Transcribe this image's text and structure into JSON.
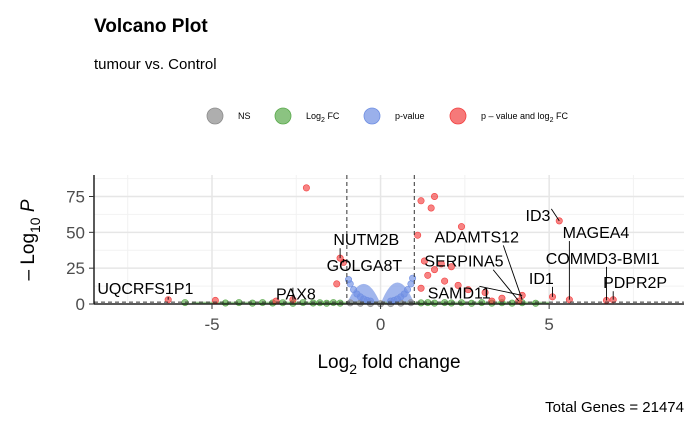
{
  "chart_data": {
    "type": "scatter",
    "title": "Volcano Plot",
    "subtitle": "tumour vs. Control",
    "caption": "Total Genes = 21474",
    "legend": {
      "placement": "top",
      "items": [
        {
          "label": "NS",
          "color": "#8c8c8c"
        },
        {
          "label": "Log",
          "sub": "2",
          "suffix": " FC",
          "color": "#5aaa4c"
        },
        {
          "label": "p-value",
          "color": "#6f8fe3"
        },
        {
          "label": "p – value and log",
          "sub": "2",
          "suffix": " FC",
          "color": "#f24040"
        }
      ]
    },
    "xlabel": {
      "pre": "Log",
      "sub": "2",
      "post": " fold change"
    },
    "ylabel": {
      "pre": "– Log",
      "sub": "10",
      "post": " P"
    },
    "xlim": [
      -8.5,
      9.0
    ],
    "ylim": [
      0,
      90
    ],
    "xticks": [
      -5,
      0,
      5
    ],
    "yticks": [
      0,
      25,
      50,
      75
    ],
    "grid": true,
    "fc_cutoff": [
      -1,
      1
    ],
    "p_cutoff": 1.3,
    "significant_points": [
      {
        "x": -2.2,
        "y": 81
      },
      {
        "x": 1.6,
        "y": 75
      },
      {
        "x": 1.2,
        "y": 72
      },
      {
        "x": 1.5,
        "y": 67
      },
      {
        "x": 2.4,
        "y": 54
      },
      {
        "x": 5.3,
        "y": 58
      },
      {
        "x": 1.1,
        "y": 48
      },
      {
        "x": -1.2,
        "y": 32
      },
      {
        "x": -1.1,
        "y": 29
      },
      {
        "x": 1.3,
        "y": 30
      },
      {
        "x": 1.8,
        "y": 28
      },
      {
        "x": 2.1,
        "y": 26
      },
      {
        "x": 1.6,
        "y": 24
      },
      {
        "x": 1.4,
        "y": 20
      },
      {
        "x": 1.9,
        "y": 16
      },
      {
        "x": 2.3,
        "y": 13
      },
      {
        "x": -1.3,
        "y": 14
      },
      {
        "x": 1.2,
        "y": 11
      },
      {
        "x": 2.6,
        "y": 10
      },
      {
        "x": 3.1,
        "y": 8
      },
      {
        "x": 4.2,
        "y": 6
      },
      {
        "x": 5.1,
        "y": 5
      },
      {
        "x": 5.6,
        "y": 3
      },
      {
        "x": 6.7,
        "y": 2.5
      },
      {
        "x": 6.9,
        "y": 3
      },
      {
        "x": -6.3,
        "y": 3
      },
      {
        "x": -4.9,
        "y": 2.5
      },
      {
        "x": -3.1,
        "y": 2
      },
      {
        "x": -2.6,
        "y": 3
      },
      {
        "x": 3.6,
        "y": 4
      },
      {
        "x": 4.1,
        "y": 2
      },
      {
        "x": 3.3,
        "y": 2
      }
    ],
    "fc_points": [
      {
        "x": -5.8,
        "y": 1
      },
      {
        "x": -4.6,
        "y": 0.7
      },
      {
        "x": -4.2,
        "y": 1
      },
      {
        "x": -3.8,
        "y": 0.6
      },
      {
        "x": -3.5,
        "y": 1
      },
      {
        "x": -3.2,
        "y": 0.7
      },
      {
        "x": -2.9,
        "y": 0.9
      },
      {
        "x": -2.6,
        "y": 0.5
      },
      {
        "x": -2.3,
        "y": 1
      },
      {
        "x": -2.0,
        "y": 0.7
      },
      {
        "x": -1.8,
        "y": 0.9
      },
      {
        "x": -1.6,
        "y": 0.5
      },
      {
        "x": -1.4,
        "y": 1
      },
      {
        "x": -1.2,
        "y": 0.6
      },
      {
        "x": 1.2,
        "y": 0.8
      },
      {
        "x": 1.4,
        "y": 1
      },
      {
        "x": 1.6,
        "y": 0.6
      },
      {
        "x": 1.9,
        "y": 1
      },
      {
        "x": 2.1,
        "y": 0.7
      },
      {
        "x": 2.4,
        "y": 0.9
      },
      {
        "x": 2.7,
        "y": 0.5
      },
      {
        "x": 3.0,
        "y": 1
      },
      {
        "x": 3.3,
        "y": 0.6
      },
      {
        "x": 3.6,
        "y": 0.9
      },
      {
        "x": 3.9,
        "y": 0.6
      },
      {
        "x": 4.2,
        "y": 0.9
      },
      {
        "x": 4.6,
        "y": 0.5
      }
    ],
    "pval_points": [
      {
        "x": -0.9,
        "y": 14
      },
      {
        "x": -0.8,
        "y": 10
      },
      {
        "x": -0.7,
        "y": 7
      },
      {
        "x": -0.6,
        "y": 5
      },
      {
        "x": -0.5,
        "y": 3.5
      },
      {
        "x": -0.4,
        "y": 2.5
      },
      {
        "x": -0.3,
        "y": 2
      },
      {
        "x": 0.3,
        "y": 2
      },
      {
        "x": 0.4,
        "y": 2.5
      },
      {
        "x": 0.5,
        "y": 3.5
      },
      {
        "x": 0.6,
        "y": 5
      },
      {
        "x": 0.7,
        "y": 7
      },
      {
        "x": 0.8,
        "y": 10
      },
      {
        "x": 0.9,
        "y": 14
      },
      {
        "x": 0.95,
        "y": 18
      },
      {
        "x": -0.95,
        "y": 17
      }
    ],
    "ns_points": [
      {
        "x": -0.9,
        "y": 0.8
      },
      {
        "x": -0.6,
        "y": 0.5
      },
      {
        "x": -0.3,
        "y": 0.3
      },
      {
        "x": 0.0,
        "y": 0.2
      },
      {
        "x": 0.3,
        "y": 0.3
      },
      {
        "x": 0.6,
        "y": 0.6
      },
      {
        "x": 0.9,
        "y": 0.9
      }
    ],
    "labels": [
      {
        "text": "UQCRFS1P1",
        "x": -6.3,
        "y": 3,
        "lx": -8.4,
        "ly": 7
      },
      {
        "text": "PAX8",
        "x": -2.6,
        "y": 3,
        "lx": -3.1,
        "ly": 3
      },
      {
        "text": "NUTM2B",
        "x": -1.2,
        "y": 32,
        "lx": -1.4,
        "ly": 41
      },
      {
        "text": "GOLGA8T",
        "x": -1.1,
        "y": 29,
        "lx": -1.6,
        "ly": 23
      },
      {
        "text": "SAMD11",
        "x": 4.2,
        "y": 6,
        "lx": 1.4,
        "ly": 4
      },
      {
        "text": "SERPINA5",
        "x": 4.1,
        "y": 2,
        "lx": 1.3,
        "ly": 26
      },
      {
        "text": "ADAMTS12",
        "x": 4.2,
        "y": 3,
        "lx": 1.6,
        "ly": 43
      },
      {
        "text": "ID3",
        "x": 5.3,
        "y": 58,
        "lx": 4.3,
        "ly": 58
      },
      {
        "text": "ID1",
        "x": 5.1,
        "y": 5,
        "lx": 4.4,
        "ly": 14
      },
      {
        "text": "MAGEA4",
        "x": 5.6,
        "y": 3,
        "lx": 5.4,
        "ly": 46
      },
      {
        "text": "COMMD3-BMI1",
        "x": 6.7,
        "y": 2.5,
        "lx": 4.9,
        "ly": 28
      },
      {
        "text": "PDPR2P",
        "x": 6.9,
        "y": 3,
        "lx": 6.6,
        "ly": 11
      }
    ]
  }
}
